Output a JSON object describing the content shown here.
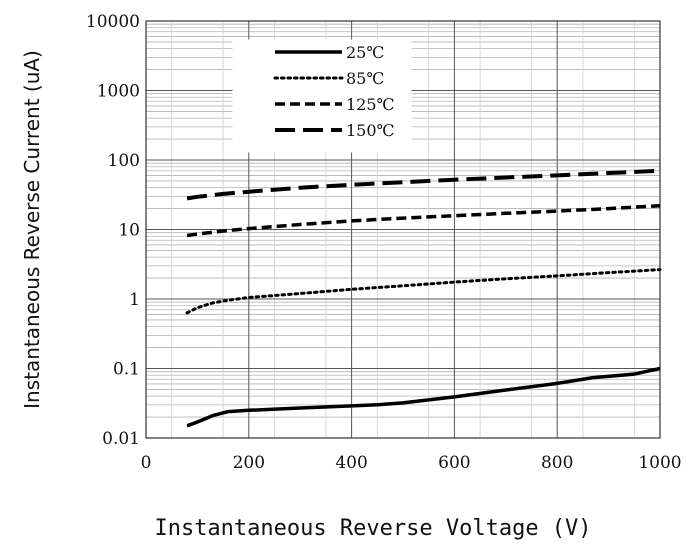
{
  "chart_data": {
    "type": "line",
    "title": "",
    "xlabel": "Instantaneous Reverse Voltage (V)",
    "ylabel": "Instantaneous Reverse Current (uA)",
    "xlim": [
      0,
      1000
    ],
    "ylim": [
      0.01,
      10000
    ],
    "y_scale": "log",
    "grid": true,
    "legend_position": "top-left",
    "x_ticks": [
      0,
      200,
      400,
      600,
      800,
      1000
    ],
    "x_tick_labels": [
      "0",
      "200",
      "400",
      "600",
      "800",
      "1000"
    ],
    "y_ticks": [
      0.01,
      0.1,
      1,
      10,
      100,
      1000,
      10000
    ],
    "y_tick_labels": [
      "0.01",
      "0.1",
      "1",
      "10",
      "100",
      "1000",
      "10000"
    ],
    "series": [
      {
        "name": "25℃",
        "line_style": "solid",
        "color": "#000000",
        "x": [
          80,
          100,
          130,
          160,
          200,
          300,
          400,
          450,
          500,
          600,
          700,
          800,
          870,
          950,
          980,
          1000
        ],
        "y": [
          0.015,
          0.017,
          0.021,
          0.024,
          0.025,
          0.027,
          0.029,
          0.03,
          0.032,
          0.039,
          0.049,
          0.061,
          0.074,
          0.083,
          0.093,
          0.1
        ]
      },
      {
        "name": "85℃",
        "line_style": "dotted",
        "color": "#000000",
        "x": [
          80,
          100,
          130,
          160,
          200,
          300,
          400,
          500,
          600,
          700,
          800,
          900,
          1000
        ],
        "y": [
          0.63,
          0.75,
          0.88,
          0.96,
          1.05,
          1.2,
          1.38,
          1.55,
          1.75,
          1.95,
          2.15,
          2.4,
          2.65
        ]
      },
      {
        "name": "125℃",
        "line_style": "short-dash",
        "color": "#000000",
        "x": [
          80,
          100,
          150,
          200,
          300,
          400,
          500,
          600,
          700,
          800,
          900,
          1000
        ],
        "y": [
          8.2,
          8.6,
          9.5,
          10.3,
          11.8,
          13.3,
          14.6,
          15.8,
          17.1,
          18.4,
          20,
          22
        ]
      },
      {
        "name": "150℃",
        "line_style": "long-dash",
        "color": "#000000",
        "x": [
          80,
          100,
          150,
          200,
          300,
          400,
          500,
          600,
          700,
          800,
          900,
          1000
        ],
        "y": [
          28,
          29.5,
          32.5,
          35,
          40,
          44,
          48,
          52,
          56,
          60,
          65,
          70
        ]
      }
    ]
  }
}
